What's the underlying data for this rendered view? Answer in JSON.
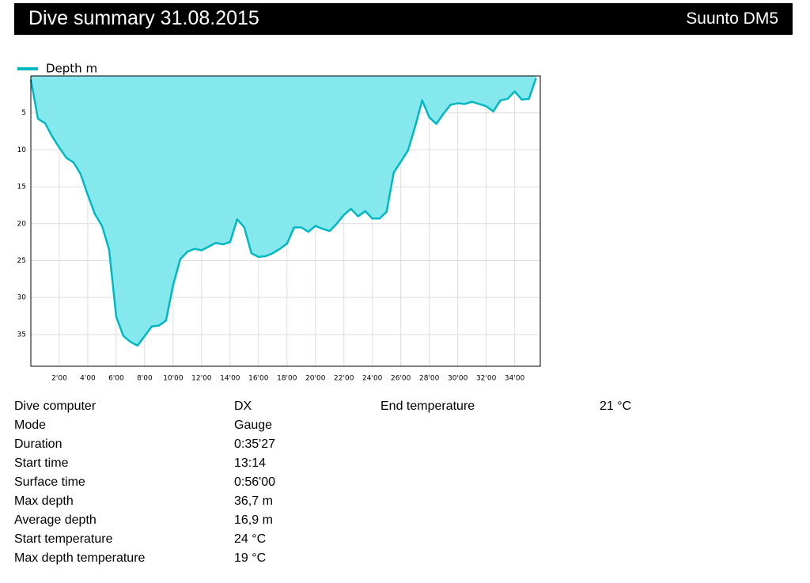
{
  "header": {
    "title": "Dive summary 31.08.2015",
    "software": "Suunto DM5"
  },
  "chart_data": {
    "type": "area",
    "x": [
      0,
      0.5,
      1,
      1.5,
      2,
      2.5,
      3,
      3.5,
      4,
      4.5,
      5,
      5.5,
      6,
      6.5,
      7,
      7.5,
      8,
      8.5,
      9,
      9.5,
      10,
      10.5,
      11,
      11.5,
      12,
      12.5,
      13,
      13.5,
      14,
      14.5,
      15,
      15.5,
      16,
      16.5,
      17,
      17.5,
      18,
      18.5,
      19,
      19.5,
      20,
      20.5,
      21,
      21.5,
      22,
      22.5,
      23,
      23.5,
      24,
      24.5,
      25,
      25.5,
      26,
      26.5,
      27,
      27.5,
      28,
      28.5,
      29,
      29.5,
      30,
      30.5,
      31,
      31.5,
      32,
      32.5,
      33,
      33.5,
      34,
      34.5,
      35,
      35.5
    ],
    "series": [
      {
        "name": "Depth m",
        "color": "#00b8c2",
        "fill": "#84e8ed",
        "values": [
          0.5,
          5.8,
          6.4,
          8.2,
          9.7,
          11.1,
          11.7,
          13.3,
          16.1,
          18.7,
          20.3,
          23.5,
          32.6,
          35.2,
          36,
          36.5,
          35.2,
          33.9,
          33.8,
          33.1,
          28.3,
          24.8,
          23.8,
          23.4,
          23.6,
          23.1,
          22.6,
          22.8,
          22.5,
          19.4,
          20.5,
          24.0,
          24.5,
          24.4,
          24.0,
          23.4,
          22.7,
          20.5,
          20.5,
          21.1,
          20.3,
          20.7,
          21.0,
          20.0,
          18.8,
          18.0,
          19.0,
          18.3,
          19.3,
          19.3,
          18.4,
          13.1,
          11.6,
          10.1,
          6.9,
          3.3,
          5.6,
          6.5,
          5.1,
          3.9,
          3.7,
          3.8,
          3.5,
          3.8,
          4.1,
          4.8,
          3.3,
          3.1,
          2.1,
          3.2,
          3.1,
          0.3
        ]
      }
    ],
    "xlim": [
      0,
      35.8
    ],
    "xticks": [
      {
        "value": 2,
        "label": "2'00"
      },
      {
        "value": 4,
        "label": "4'00"
      },
      {
        "value": 6,
        "label": "6'00"
      },
      {
        "value": 8,
        "label": "8'00"
      },
      {
        "value": 10,
        "label": "10'00"
      },
      {
        "value": 12,
        "label": "12'00"
      },
      {
        "value": 14,
        "label": "14'00"
      },
      {
        "value": 16,
        "label": "16'00"
      },
      {
        "value": 18,
        "label": "18'00"
      },
      {
        "value": 20,
        "label": "20'00"
      },
      {
        "value": 22,
        "label": "22'00"
      },
      {
        "value": 24,
        "label": "24'00"
      },
      {
        "value": 26,
        "label": "26'00"
      },
      {
        "value": 28,
        "label": "28'00"
      },
      {
        "value": 30,
        "label": "30'00"
      },
      {
        "value": 32,
        "label": "32'00"
      },
      {
        "value": 34,
        "label": "34'00"
      }
    ],
    "ylim": [
      0,
      39.3
    ],
    "y_inverted": true,
    "yticks": [
      5,
      10,
      15,
      20,
      25,
      30,
      35
    ],
    "grid": true,
    "legend": "top-left"
  },
  "table": {
    "rows": [
      [
        "Dive computer",
        "DX",
        "End temperature",
        "21 °C"
      ],
      [
        "Mode",
        "Gauge"
      ],
      [
        "Duration",
        "0:35'27"
      ],
      [
        "Start time",
        "13:14"
      ],
      [
        "Surface time",
        "0:56'00"
      ],
      [
        "Max depth",
        "36,7 m"
      ],
      [
        "Average depth",
        "16,9 m"
      ],
      [
        "Start temperature",
        "24 °C"
      ],
      [
        "Max depth temperature",
        "19 °C"
      ]
    ]
  }
}
